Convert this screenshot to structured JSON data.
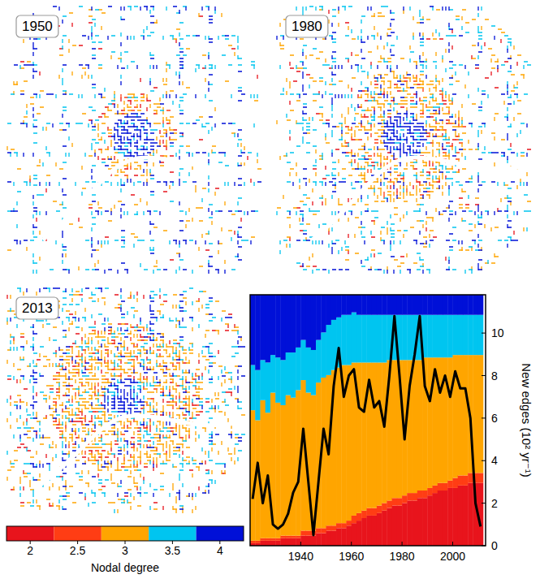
{
  "maps": [
    {
      "label": "1950"
    },
    {
      "label": "1980"
    },
    {
      "label": "2013"
    }
  ],
  "colorbar": {
    "label": "Nodal degree",
    "range": [
      1.75,
      4.25
    ],
    "ticks": [
      2,
      2.5,
      3,
      3.5,
      4
    ]
  },
  "chart_data": {
    "type": "bar",
    "stacked": true,
    "ylabel": "New edges (10² yr⁻¹)",
    "x": [
      1921,
      1923,
      1925,
      1927,
      1929,
      1931,
      1933,
      1935,
      1937,
      1939,
      1941,
      1943,
      1945,
      1947,
      1949,
      1951,
      1953,
      1955,
      1957,
      1959,
      1961,
      1963,
      1965,
      1967,
      1969,
      1971,
      1973,
      1975,
      1977,
      1979,
      1981,
      1983,
      1985,
      1987,
      1989,
      1991,
      1993,
      1995,
      1997,
      1999,
      2001,
      2003,
      2005,
      2007,
      2009,
      2011
    ],
    "xlim": [
      1920,
      2013
    ],
    "xticks": [
      1940,
      1960,
      1980,
      2000
    ],
    "ylim": [
      0,
      11.8
    ],
    "yticks": [
      0,
      2,
      4,
      6,
      8,
      10
    ],
    "y2lim": [
      0,
      100
    ],
    "y2ticks": [],
    "series": [
      {
        "type": "bar",
        "axis": "y2",
        "color": "#e8141c",
        "values": [
          1,
          1,
          2,
          2,
          2,
          2,
          3,
          3,
          3,
          3,
          4,
          4,
          4,
          5,
          5,
          6,
          6,
          7,
          7,
          8,
          9,
          10,
          11,
          12,
          12,
          13,
          14,
          15,
          16,
          16,
          17,
          18,
          18,
          19,
          19,
          20,
          21,
          22,
          22,
          23,
          23,
          24,
          24,
          25,
          25,
          25
        ]
      },
      {
        "type": "bar",
        "axis": "y2",
        "color": "#ff3d14",
        "values": [
          1,
          1,
          1,
          1,
          1,
          1,
          1,
          1,
          1,
          1,
          2,
          2,
          2,
          2,
          2,
          2,
          2,
          2,
          2,
          2,
          3,
          3,
          3,
          3,
          3,
          3,
          3,
          3,
          3,
          3,
          3,
          3,
          3,
          3,
          3,
          3,
          3,
          3,
          3,
          3,
          4,
          4,
          4,
          4,
          4,
          4
        ]
      },
      {
        "type": "bar",
        "axis": "y2",
        "color": "#ffa500",
        "values": [
          52,
          48,
          55,
          50,
          58,
          54,
          52,
          56,
          55,
          58,
          60,
          55,
          54,
          58,
          60,
          60,
          62,
          62,
          63,
          62,
          61,
          60,
          59,
          58,
          58,
          57,
          56,
          56,
          55,
          55,
          54,
          53,
          53,
          52,
          53,
          52,
          51,
          50,
          50,
          49,
          49,
          48,
          48,
          47,
          47,
          47
        ]
      },
      {
        "type": "bar",
        "axis": "y2",
        "color": "#00c5f0",
        "values": [
          18,
          20,
          16,
          20,
          15,
          18,
          18,
          17,
          18,
          17,
          16,
          18,
          18,
          17,
          18,
          20,
          20,
          20,
          20,
          20,
          20,
          19,
          19,
          19,
          19,
          19,
          19,
          18,
          18,
          18,
          18,
          18,
          18,
          18,
          17,
          17,
          17,
          17,
          17,
          17,
          16,
          16,
          16,
          16,
          16,
          16
        ]
      },
      {
        "type": "bar",
        "axis": "y2",
        "color": "#0010d8",
        "values": [
          28,
          30,
          26,
          27,
          24,
          25,
          26,
          23,
          23,
          21,
          18,
          21,
          22,
          18,
          15,
          12,
          10,
          9,
          8,
          8,
          7,
          8,
          8,
          8,
          8,
          8,
          8,
          8,
          8,
          8,
          8,
          8,
          8,
          8,
          8,
          8,
          8,
          8,
          8,
          8,
          8,
          8,
          8,
          8,
          8,
          8
        ]
      },
      {
        "type": "line",
        "color": "#000000",
        "values": [
          2.2,
          3.9,
          2.0,
          3.3,
          1.0,
          0.8,
          1.0,
          1.5,
          2.5,
          3.0,
          5.5,
          3.0,
          0.5,
          3.0,
          5.5,
          4.3,
          7.5,
          9.3,
          7.0,
          8.0,
          8.3,
          6.5,
          6.3,
          7.8,
          6.5,
          6.8,
          5.6,
          8.0,
          10.8,
          8.0,
          5.0,
          7.5,
          9.0,
          10.8,
          7.5,
          6.8,
          8.3,
          7.2,
          8.0,
          7.0,
          8.2,
          7.4,
          7.4,
          6.0,
          2.0,
          0.9
        ]
      }
    ]
  }
}
